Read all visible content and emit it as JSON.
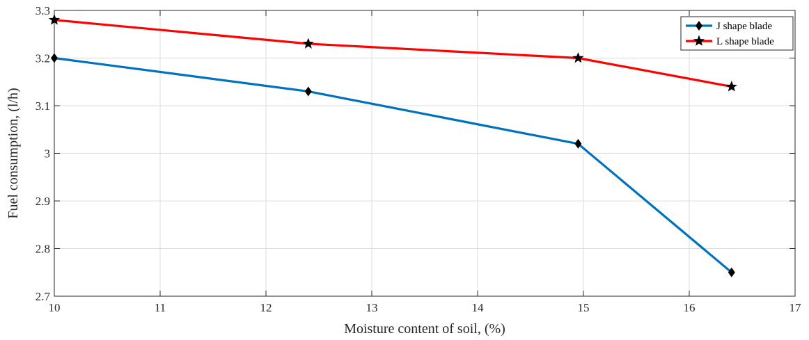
{
  "chart_data": {
    "type": "line",
    "xlabel": "Moisture content of soil, (%)",
    "ylabel": "Fuel consumption, (l/h)",
    "xlim": [
      10,
      17
    ],
    "ylim": [
      2.7,
      3.3
    ],
    "xticks": [
      10,
      11,
      12,
      13,
      14,
      15,
      16,
      17
    ],
    "yticks": [
      2.7,
      2.8,
      2.9,
      3.0,
      3.1,
      3.2,
      3.3
    ],
    "xtick_labels": [
      "10",
      "11",
      "12",
      "13",
      "14",
      "15",
      "16",
      "17"
    ],
    "ytick_labels": [
      "2.7",
      "2.8",
      "2.9",
      "3",
      "3.1",
      "3.2",
      "3.3"
    ],
    "grid": true,
    "legend_position": "top-right",
    "series": [
      {
        "name": "J shape blade",
        "color": "#0072BD",
        "marker": "diamond",
        "x": [
          10.0,
          12.4,
          14.95,
          16.4
        ],
        "y": [
          3.2,
          3.13,
          3.02,
          2.75
        ]
      },
      {
        "name": "L shape blade",
        "color": "#FF0000",
        "marker": "star",
        "x": [
          10.0,
          12.4,
          14.95,
          16.4
        ],
        "y": [
          3.28,
          3.23,
          3.2,
          3.14
        ]
      }
    ]
  }
}
